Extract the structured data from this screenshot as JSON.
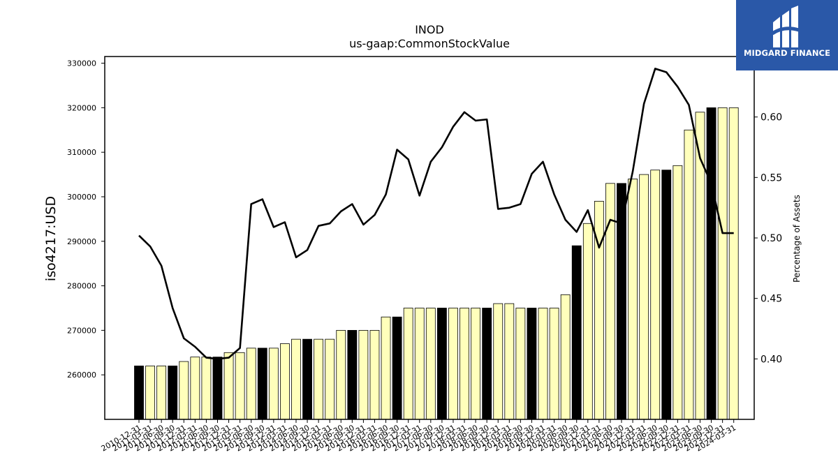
{
  "chart_data": {
    "type": "bar",
    "title": "INOD",
    "subtitle": "us-gaap:CommonStockValue",
    "ylabel": "iso4217:USD",
    "ylabel_right": "Percentage of Assets",
    "ylim": [
      250000,
      331500
    ],
    "ylim_right": [
      0.35,
      0.65
    ],
    "yticks": [
      260000,
      270000,
      280000,
      290000,
      300000,
      310000,
      320000,
      330000
    ],
    "yticks_right": [
      0.4,
      0.45,
      0.5,
      0.55,
      0.6
    ],
    "categories": [
      "2010-12-31",
      "2011-03-31",
      "2011-06-30",
      "2011-09-30",
      "2011-12-31",
      "2012-03-31",
      "2012-06-30",
      "2012-09-30",
      "2012-12-31",
      "2013-03-31",
      "2013-06-30",
      "2013-09-30",
      "2013-12-31",
      "2014-03-31",
      "2014-06-30",
      "2014-09-30",
      "2014-12-31",
      "2015-03-31",
      "2015-06-30",
      "2015-09-30",
      "2015-12-31",
      "2016-03-31",
      "2016-06-30",
      "2016-09-30",
      "2016-12-31",
      "2017-03-31",
      "2017-06-30",
      "2017-09-30",
      "2017-12-31",
      "2018-03-31",
      "2018-06-30",
      "2018-09-30",
      "2018-12-31",
      "2019-03-31",
      "2019-06-30",
      "2019-09-30",
      "2019-12-31",
      "2020-03-31",
      "2020-06-30",
      "2020-09-30",
      "2020-12-31",
      "2021-03-31",
      "2021-06-30",
      "2021-09-30",
      "2021-12-31",
      "2022-03-31",
      "2022-06-30",
      "2022-09-30",
      "2022-12-31",
      "2023-03-31",
      "2023-06-30",
      "2023-09-30",
      "2023-12-31",
      "2024-03-31"
    ],
    "tick_labels": [
      "2010-12-31",
      "2011-03-31",
      "2011-06-30",
      "2011-09-30",
      "2011-12-31",
      "2012-03-31",
      "2012-06-30",
      "2012-09-30",
      "2012-12-31",
      "2013-03-31",
      "2013-06-30",
      "2013-09-30",
      "2013-12-31",
      "2014-03-31",
      "2014-06-30",
      "2014-09-30",
      "2014-12-31",
      "2015-03-31",
      "2015-06-30",
      "2015-09-30",
      "2015-12-31",
      "2016-03-31",
      "2016-06-30",
      "2016-09-30",
      "2016-12-31",
      "2017-03-31",
      "2017-06-30",
      "2017-09-30",
      "2017-12-31",
      "2018-03-31",
      "2018-06-30",
      "2018-09-30",
      "2018-12-31",
      "2019-03-31",
      "2019-06-30",
      "2019-09-30",
      "2019-12-31",
      "2020-03-31",
      "2020-06-30",
      "2020-09-30",
      "2020-12-31",
      "2021-03-31",
      "2021-06-30",
      "2021-09-30",
      "2021-12-31",
      "2022-03-31",
      "2022-06-30",
      "2022-09-30",
      "2022-12-31",
      "2023-03-31",
      "2023-06-30",
      "2023-09-30",
      "2023-12-31",
      "2024-03-31"
    ],
    "series": [
      {
        "type": "bar",
        "axis": "left",
        "values": [
          262000,
          262000,
          262000,
          262000,
          263000,
          264000,
          264000,
          264000,
          265000,
          265000,
          266000,
          266000,
          266000,
          267000,
          268000,
          268000,
          268000,
          268000,
          270000,
          270000,
          270000,
          270000,
          273000,
          273000,
          275000,
          275000,
          275000,
          275000,
          275000,
          275000,
          275000,
          275000,
          276000,
          276000,
          275000,
          275000,
          275000,
          275000,
          278000,
          289000,
          294000,
          299000,
          303000,
          303000,
          304000,
          305000,
          306000,
          306000,
          307000,
          315000,
          319000,
          320000,
          320000,
          320000
        ],
        "annual_flags": [
          true,
          false,
          false,
          true,
          false,
          false,
          false,
          true,
          false,
          false,
          false,
          true,
          false,
          false,
          false,
          true,
          false,
          false,
          false,
          true,
          false,
          false,
          false,
          true,
          false,
          false,
          false,
          true,
          false,
          false,
          false,
          true,
          false,
          false,
          false,
          true,
          false,
          false,
          false,
          true,
          false,
          false,
          false,
          true,
          false,
          false,
          false,
          true,
          false,
          false,
          false,
          true,
          false,
          false
        ],
        "colors": {
          "annual": "#000000",
          "quarterly": "#ffffbb",
          "edge": "#000000"
        }
      },
      {
        "type": "line",
        "axis": "right",
        "values": [
          0.502,
          0.493,
          0.477,
          0.442,
          0.417,
          0.41,
          0.401,
          0.4,
          0.401,
          0.409,
          0.528,
          0.532,
          0.509,
          0.513,
          0.484,
          0.49,
          0.51,
          0.512,
          0.522,
          0.528,
          0.511,
          0.519,
          0.536,
          0.573,
          0.565,
          0.535,
          0.563,
          0.575,
          0.592,
          0.604,
          0.597,
          0.598,
          0.524,
          0.525,
          0.528,
          0.553,
          0.563,
          0.536,
          0.515,
          0.505,
          0.523,
          0.492,
          0.515,
          0.512,
          0.555,
          0.611,
          0.64,
          0.637,
          0.625,
          0.61,
          0.566,
          0.545,
          0.504,
          0.504
        ],
        "color": "#000000"
      }
    ],
    "grid": false,
    "legend": "none"
  },
  "brand": {
    "name": "MIDGARD FINANCE",
    "color": "#2a58a8"
  }
}
